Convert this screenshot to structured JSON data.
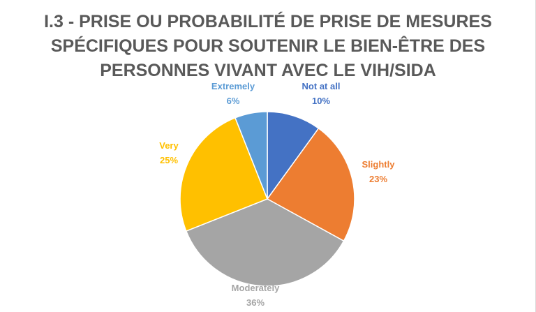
{
  "chart_data": {
    "type": "pie",
    "title_lines": [
      "I.3 - PRISE OU PROBABILITÉ DE PRISE DE MESURES",
      "SPÉCIFIQUES POUR SOUTENIR LE BIEN-ÊTRE DES",
      "PERSONNES VIVANT AVEC LE VIH/SIDA"
    ],
    "slices": [
      {
        "label": "Not at all",
        "value": 10,
        "display": "10%",
        "color": "#4472c4"
      },
      {
        "label": "Slightly",
        "value": 23,
        "display": "23%",
        "color": "#ed7d31"
      },
      {
        "label": "Moderately",
        "value": 36,
        "display": "36%",
        "color": "#a5a5a5"
      },
      {
        "label": "Very",
        "value": 25,
        "display": "25%",
        "color": "#ffc000"
      },
      {
        "label": "Extremely",
        "value": 6,
        "display": "6%",
        "color": "#5b9bd5"
      }
    ],
    "start_angle_deg": 0,
    "direction": "clockwise",
    "legend": "none",
    "data_labels": "outside"
  }
}
